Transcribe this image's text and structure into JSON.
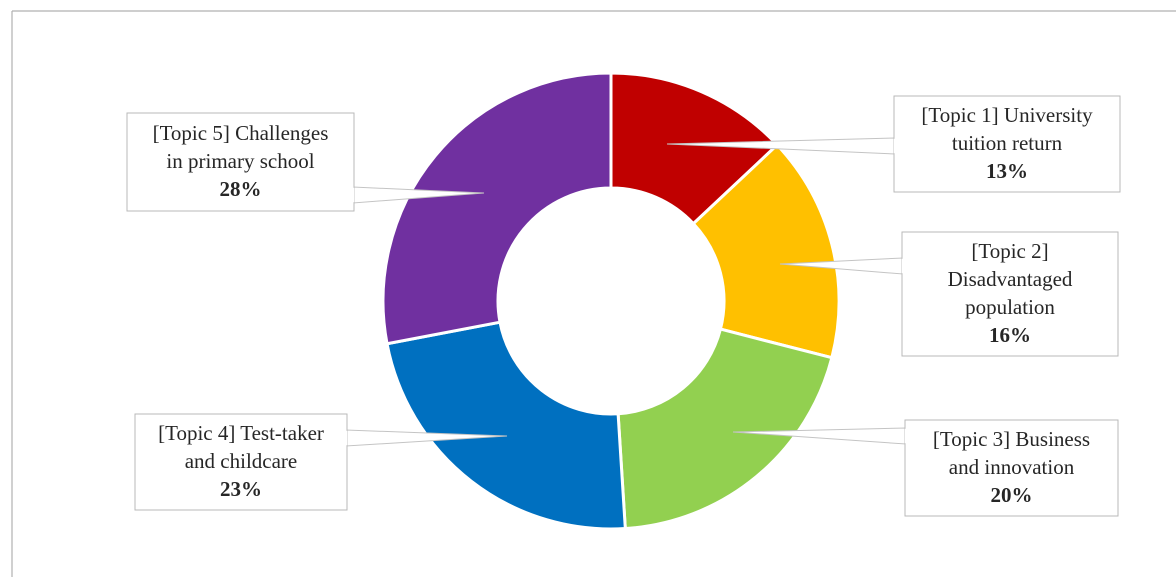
{
  "chart_data": {
    "type": "pie",
    "variant": "donut",
    "title": "",
    "legend": "none",
    "slices": [
      {
        "lines": [
          "[Topic 1] University",
          "tuition return"
        ],
        "value": 13,
        "label": "13%",
        "color": "#c00000",
        "icon": "callout-topic1"
      },
      {
        "lines": [
          "[Topic 2]",
          "Disadvantaged",
          "population"
        ],
        "value": 16,
        "label": "16%",
        "color": "#ffc000",
        "icon": "callout-topic2"
      },
      {
        "lines": [
          "[Topic 3] Business",
          "and innovation"
        ],
        "value": 20,
        "label": "20%",
        "color": "#92d050",
        "icon": "callout-topic3"
      },
      {
        "lines": [
          "[Topic 4] Test-taker",
          "and childcare"
        ],
        "value": 23,
        "label": "23%",
        "color": "#0070c0",
        "icon": "callout-topic4"
      },
      {
        "lines": [
          "[Topic 5] Challenges",
          "in primary school"
        ],
        "value": 28,
        "label": "28%",
        "color": "#7030a0",
        "icon": "callout-topic5"
      }
    ]
  }
}
